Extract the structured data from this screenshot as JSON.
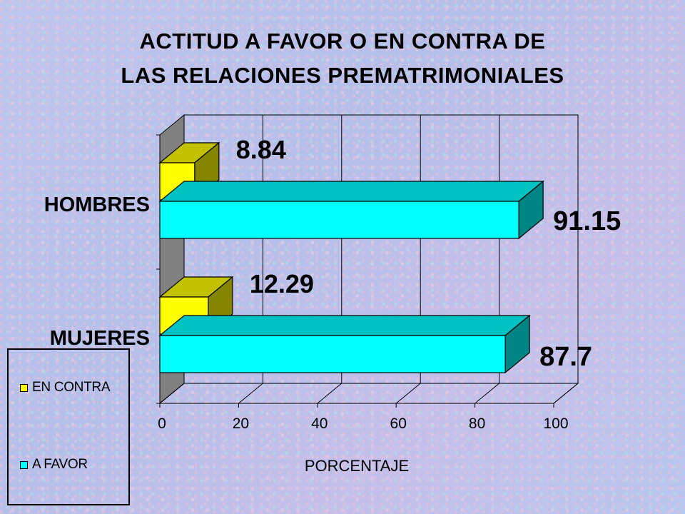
{
  "chart_data": {
    "type": "bar",
    "orientation": "horizontal",
    "three_d": true,
    "title_lines": [
      "ACTITUD A FAVOR O EN CONTRA DE",
      "LAS RELACIONES PREMATRIMONIALES"
    ],
    "categories": [
      "HOMBRES",
      "MUJERES"
    ],
    "series": [
      {
        "name": "EN CONTRA",
        "color": "#ffff00",
        "values": [
          8.84,
          12.29
        ],
        "value_labels": [
          "8.84",
          "12.29"
        ]
      },
      {
        "name": "A FAVOR",
        "color": "#00ffff",
        "values": [
          91.15,
          87.7
        ],
        "value_labels": [
          "91.15",
          "87.7"
        ]
      }
    ],
    "xlabel": "PORCENTAJE",
    "xlim": [
      0,
      100
    ],
    "xticks": [
      "0",
      "20",
      "40",
      "60",
      "80",
      "100"
    ],
    "grid": "vertical",
    "legend_position": "bottom-left"
  }
}
